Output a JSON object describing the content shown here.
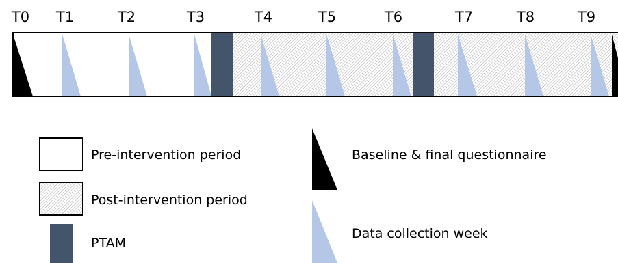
{
  "time_points": [
    "T0",
    "T1",
    "T2",
    "T3",
    "T4",
    "T5",
    "T6",
    "T7",
    "T8",
    "T9"
  ],
  "legend": {
    "pre_intervention": "Pre-intervention period",
    "post_intervention": "Post-intervention period",
    "ptam": "PTAM",
    "baseline_final": "Baseline & final questionnaire",
    "data_collection": "Data collection week"
  },
  "colors": {
    "ptam": "#44546a",
    "data_collection": "#b4c7e7",
    "baseline": "#000000",
    "hatch": "#a6a6a6"
  }
}
